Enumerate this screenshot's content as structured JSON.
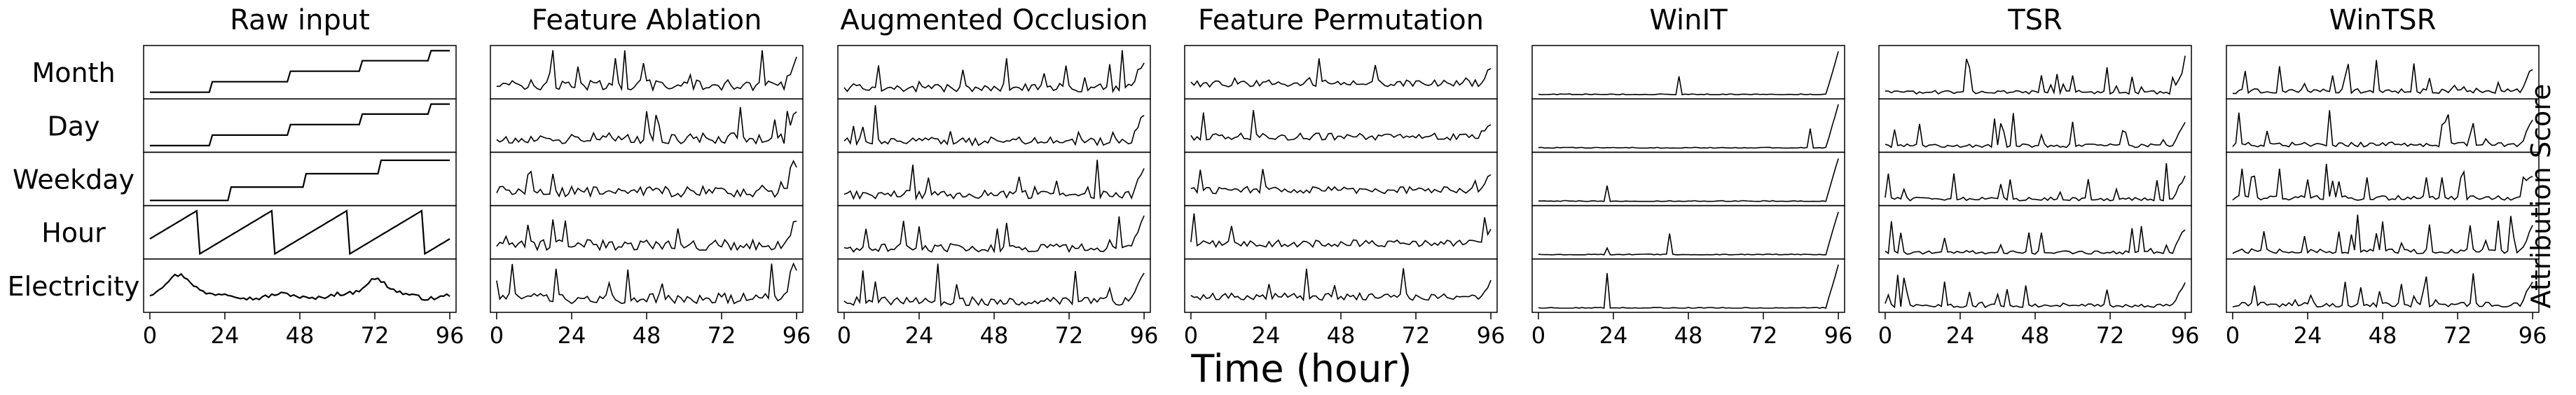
{
  "chart_data": {
    "type": "line",
    "xlabel": "Time (hour)",
    "ylabel": "Attribution Score",
    "xlim": [
      -2,
      98
    ],
    "xticks": [
      0,
      24,
      48,
      72,
      96
    ],
    "xtick_labels": [
      "0",
      "24",
      "48",
      "72",
      "96"
    ],
    "features": [
      "Month",
      "Day",
      "Weekday",
      "Hour",
      "Electricity"
    ],
    "panels": [
      {
        "title": "Raw input",
        "kind": "raw"
      },
      {
        "title": "Feature Ablation",
        "kind": "attr",
        "level": 0.35,
        "noise": 0.45,
        "spike": 0.3,
        "tail": 0.6,
        "seed": 11
      },
      {
        "title": "Augmented Occlusion",
        "kind": "attr",
        "level": 0.25,
        "noise": 0.35,
        "spike": 0.45,
        "tail": 0.6,
        "seed": 23
      },
      {
        "title": "Feature Permutation",
        "kind": "attr",
        "level": 0.55,
        "noise": 0.3,
        "spike": 0.25,
        "tail": 0.3,
        "seed": 37
      },
      {
        "title": "WinIT",
        "kind": "attr",
        "level": 0.06,
        "noise": 0.05,
        "spike": 0.1,
        "tail": 0.9,
        "seed": 41
      },
      {
        "title": "TSR",
        "kind": "attr",
        "level": 0.12,
        "noise": 0.15,
        "spike": 0.6,
        "tail": 0.5,
        "seed": 53
      },
      {
        "title": "WinTSR",
        "kind": "attr",
        "level": 0.15,
        "noise": 0.2,
        "spike": 0.65,
        "tail": 0.5,
        "seed": 67
      }
    ]
  }
}
